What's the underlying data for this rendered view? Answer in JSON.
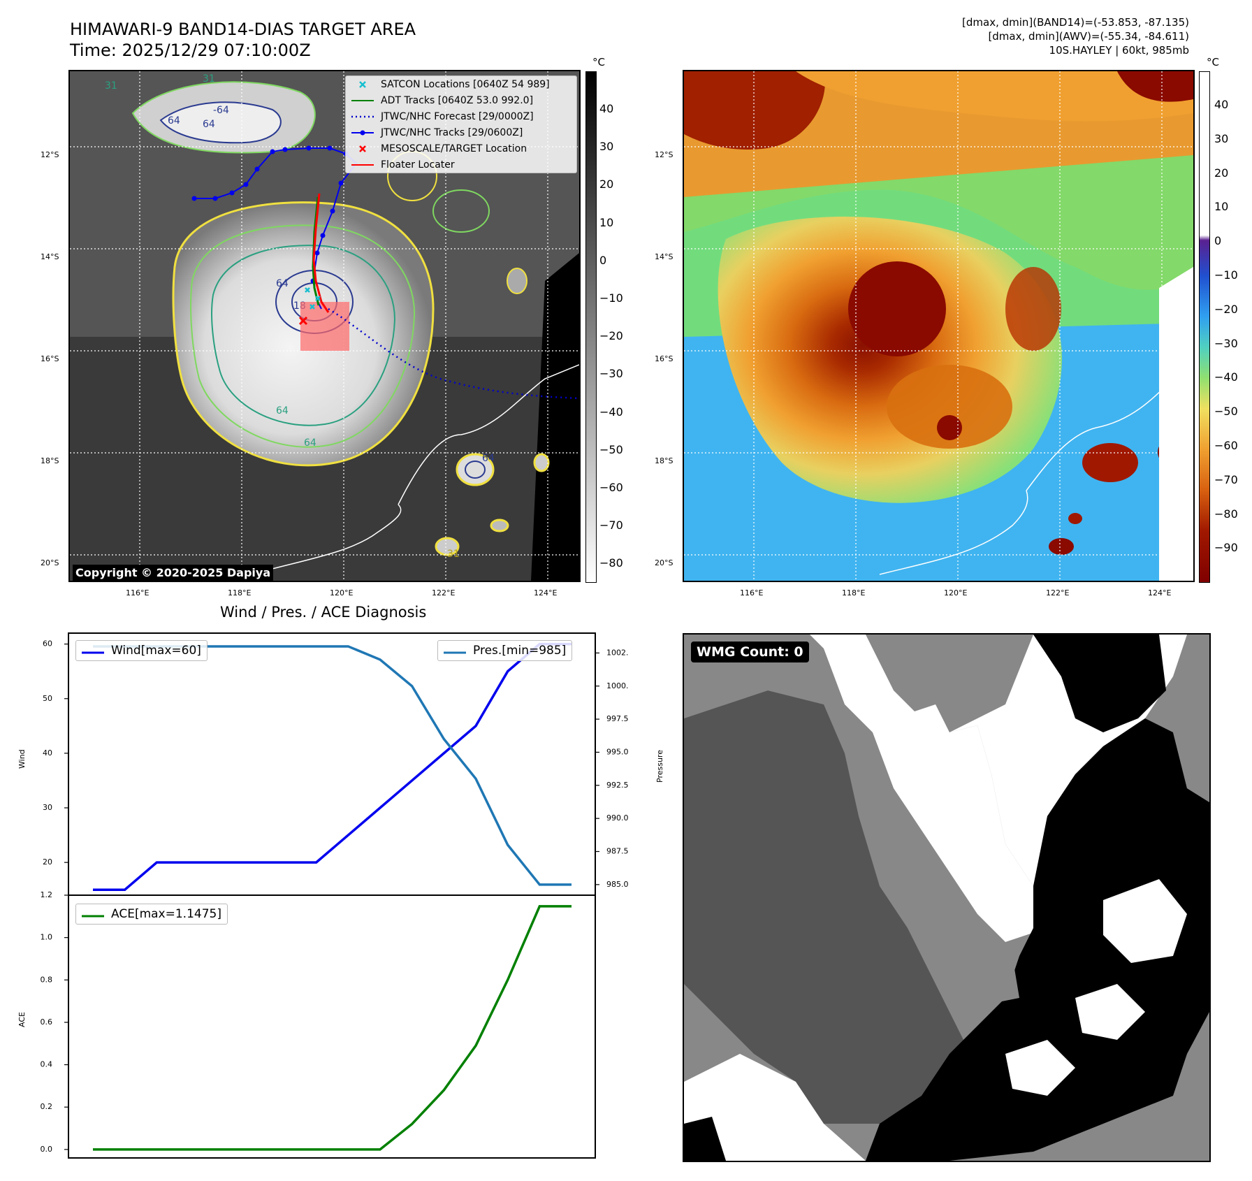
{
  "header": {
    "title": "HIMAWARI-9 BAND14-DIAS TARGET AREA",
    "time": "Time: 2025/12/29 07:10:00Z",
    "dmax_band14": "[dmax, dmin](BAND14)=(-53.853, -87.135)",
    "dmax_awv": "[dmax, dmin](AWV)=(-55.34, -84.611)",
    "storm": "10S.HAYLEY | 60kt, 985mb"
  },
  "map": {
    "lat_labels": [
      "12°S",
      "14°S",
      "16°S",
      "18°S",
      "20°S"
    ],
    "lon_labels": [
      "116°E",
      "118°E",
      "120°E",
      "122°E",
      "124°E"
    ],
    "contour_labels": [
      "31",
      "31",
      "64",
      "64",
      "64",
      "64",
      "64",
      "64",
      "18",
      "31",
      "-64"
    ],
    "copyright": "Copyright © 2020-2025 Dapiya",
    "legend": [
      {
        "label": "SATCON Locations [0640Z 54 989]",
        "color": "#17becf",
        "kind": "x-marker"
      },
      {
        "label": "ADT Tracks [0640Z 53.0 992.0]",
        "color": "#008000",
        "kind": "line"
      },
      {
        "label": "JTWC/NHC Forecast [29/0000Z]",
        "color": "#0000cc",
        "kind": "dotted"
      },
      {
        "label": "JTWC/NHC Tracks [29/0600Z]",
        "color": "#0000ee",
        "kind": "line-dot"
      },
      {
        "label": "MESOSCALE/TARGET Location",
        "color": "#ff0000",
        "kind": "x-marker"
      },
      {
        "label": "Floater Locater",
        "color": "#ff0000",
        "kind": "line"
      }
    ],
    "colorbar_unit": "°C",
    "colorbar_gray_ticks": [
      "40",
      "30",
      "20",
      "10",
      "0",
      "−10",
      "−20",
      "−30",
      "−40",
      "−50",
      "−60",
      "−70",
      "−80"
    ],
    "colorbar_awv_ticks": [
      "40",
      "30",
      "20",
      "10",
      "0",
      "−10",
      "−20",
      "−30",
      "−40",
      "−50",
      "−60",
      "−70",
      "−80",
      "−90"
    ]
  },
  "diagnosis": {
    "title": "Wind / Pres. / ACE Diagnosis",
    "wind_axis_label": "Wind",
    "pressure_axis_label": "Pressure",
    "ace_axis_label": "ACE",
    "wind_legend": "Wind[max=60]",
    "pres_legend": "Pres.[min=985]",
    "ace_legend": "ACE[max=1.1475]"
  },
  "wmg": {
    "label": "WMG Count: 0"
  },
  "chart_data": [
    {
      "type": "line",
      "title": "Wind / Pres. / ACE Diagnosis",
      "x": [
        0,
        1,
        2,
        3,
        4,
        5,
        6,
        7,
        8,
        9,
        10,
        11,
        12,
        13,
        14,
        15
      ],
      "series": [
        {
          "name": "Wind[max=60]",
          "axis": "left",
          "color": "#0000ee",
          "values": [
            15,
            15,
            20,
            20,
            20,
            20,
            20,
            20,
            25,
            30,
            35,
            40,
            45,
            55,
            60,
            60
          ]
        },
        {
          "name": "Pres.[min=985]",
          "axis": "right",
          "color": "#1f77b4",
          "values": [
            1003,
            1003,
            1003,
            1003,
            1003,
            1003,
            1003,
            1003,
            1003,
            1002,
            1000,
            996,
            993,
            988,
            985,
            985
          ]
        }
      ],
      "ylabel": "Wind",
      "ylim": [
        14,
        62
      ],
      "yticks": [
        20,
        30,
        40,
        50,
        60
      ],
      "y2label": "Pressure",
      "y2lim": [
        984.2,
        1004
      ],
      "y2ticks": [
        "985.0",
        "987.5",
        "990.0",
        "992.5",
        "995.0",
        "997.5",
        "1000.0",
        "1002.5"
      ]
    },
    {
      "type": "line",
      "x": [
        0,
        1,
        2,
        3,
        4,
        5,
        6,
        7,
        8,
        9,
        10,
        11,
        12,
        13,
        14,
        15
      ],
      "series": [
        {
          "name": "ACE[max=1.1475]",
          "color": "#008000",
          "values": [
            0,
            0,
            0,
            0,
            0,
            0,
            0,
            0,
            0,
            0,
            0.12,
            0.28,
            0.49,
            0.8,
            1.1475,
            1.1475
          ]
        }
      ],
      "ylabel": "ACE",
      "ylim": [
        -0.04,
        1.2
      ],
      "yticks": [
        "0.0",
        "0.2",
        "0.4",
        "0.6",
        "0.8",
        "1.0",
        "1.2"
      ]
    }
  ]
}
